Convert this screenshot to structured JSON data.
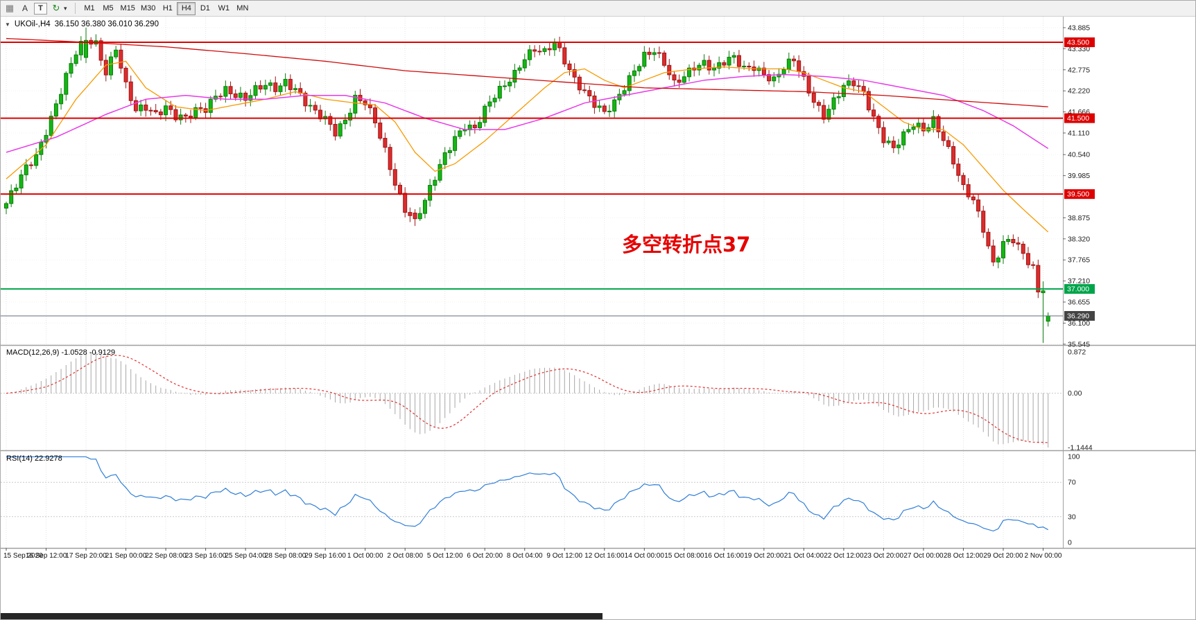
{
  "toolbar": {
    "icons": [
      {
        "name": "chart-grid-icon",
        "glyph": "▦"
      },
      {
        "name": "cursor-a-icon",
        "glyph": "A"
      },
      {
        "name": "text-tool-icon",
        "glyph": "T"
      },
      {
        "name": "refresh-icon",
        "glyph": "↻"
      },
      {
        "name": "dropdown-caret-icon",
        "glyph": "▾"
      }
    ],
    "timeframes": [
      "M1",
      "M5",
      "M15",
      "M30",
      "H1",
      "H4",
      "D1",
      "W1",
      "MN"
    ],
    "active_timeframe": "H4"
  },
  "chart_header": {
    "collapse_glyph": "▼",
    "symbol": "UKOil-,H4",
    "ohlc": "36.150 36.380 36.010 36.290"
  },
  "indicators": {
    "macd_header": "MACD(12,26,9) -1.0528 -0.9129",
    "rsi_header": "RSI(14) 22.9278"
  },
  "annotation": {
    "text": "多空转折点37"
  },
  "colors": {
    "bull": "#14b714",
    "bull_border": "#0a7a0a",
    "bear": "#dd2c2c",
    "bear_border": "#9b1616",
    "ma_fast": "#f79a00",
    "ma_mid": "#e83ae8",
    "ma_slow": "#cf0a0a",
    "level_red": "#dd0000",
    "level_green": "#00a44a",
    "current_line": "#5c6b7a",
    "current_bg": "#444444",
    "macd_hist": "#a7a7a7",
    "macd_signal": "#e03030",
    "rsi_line": "#2f7ed8",
    "grid": "#e4e4e4",
    "grid_h": "#f1f1f1",
    "ind_level": "#c9c9c9",
    "separator": "#9f9f9f",
    "annotation": "#e60000"
  },
  "chart_data": {
    "type": "candlestick",
    "symbol": "UKOil",
    "timeframe": "H4",
    "n_bars": 210,
    "ohlc_current": {
      "open": 36.15,
      "high": 36.38,
      "low": 36.01,
      "close": 36.29
    },
    "close_anchors": [
      [
        0,
        39.25
      ],
      [
        2,
        39.7
      ],
      [
        4,
        40.15
      ],
      [
        6,
        40.5
      ],
      [
        8,
        41.2
      ],
      [
        10,
        41.9
      ],
      [
        12,
        42.6
      ],
      [
        14,
        43.2
      ],
      [
        16,
        43.55
      ],
      [
        18,
        43.45
      ],
      [
        20,
        42.75
      ],
      [
        22,
        43.4
      ],
      [
        24,
        42.35
      ],
      [
        26,
        41.65
      ],
      [
        28,
        41.75
      ],
      [
        30,
        41.6
      ],
      [
        32,
        41.85
      ],
      [
        34,
        41.6
      ],
      [
        36,
        41.5
      ],
      [
        38,
        41.65
      ],
      [
        40,
        41.7
      ],
      [
        42,
        42.1
      ],
      [
        44,
        42.3
      ],
      [
        46,
        42.15
      ],
      [
        48,
        42.0
      ],
      [
        50,
        42.2
      ],
      [
        52,
        42.35
      ],
      [
        54,
        42.3
      ],
      [
        56,
        42.5
      ],
      [
        58,
        42.3
      ],
      [
        60,
        41.9
      ],
      [
        62,
        41.6
      ],
      [
        64,
        41.45
      ],
      [
        66,
        41.15
      ],
      [
        68,
        41.5
      ],
      [
        70,
        42.05
      ],
      [
        72,
        41.9
      ],
      [
        74,
        41.35
      ],
      [
        76,
        40.6
      ],
      [
        78,
        39.8
      ],
      [
        80,
        39.15
      ],
      [
        82,
        38.85
      ],
      [
        84,
        39.3
      ],
      [
        86,
        39.9
      ],
      [
        88,
        40.5
      ],
      [
        90,
        41.0
      ],
      [
        92,
        41.35
      ],
      [
        94,
        41.25
      ],
      [
        96,
        41.7
      ],
      [
        98,
        42.05
      ],
      [
        100,
        42.35
      ],
      [
        102,
        42.7
      ],
      [
        104,
        43.15
      ],
      [
        106,
        43.35
      ],
      [
        108,
        43.2
      ],
      [
        110,
        43.45
      ],
      [
        112,
        43.0
      ],
      [
        114,
        42.55
      ],
      [
        116,
        42.25
      ],
      [
        118,
        41.9
      ],
      [
        120,
        41.6
      ],
      [
        122,
        41.85
      ],
      [
        124,
        42.3
      ],
      [
        126,
        42.8
      ],
      [
        128,
        43.2
      ],
      [
        130,
        43.3
      ],
      [
        132,
        42.9
      ],
      [
        134,
        42.35
      ],
      [
        136,
        42.6
      ],
      [
        138,
        42.9
      ],
      [
        140,
        43.0
      ],
      [
        142,
        42.8
      ],
      [
        144,
        42.95
      ],
      [
        146,
        43.05
      ],
      [
        148,
        42.8
      ],
      [
        150,
        42.9
      ],
      [
        152,
        42.7
      ],
      [
        154,
        42.5
      ],
      [
        156,
        42.8
      ],
      [
        158,
        43.0
      ],
      [
        160,
        42.5
      ],
      [
        162,
        42.0
      ],
      [
        164,
        41.6
      ],
      [
        166,
        41.95
      ],
      [
        168,
        42.3
      ],
      [
        170,
        42.4
      ],
      [
        172,
        42.15
      ],
      [
        174,
        41.55
      ],
      [
        176,
        41.0
      ],
      [
        178,
        40.7
      ],
      [
        180,
        41.0
      ],
      [
        182,
        41.3
      ],
      [
        184,
        41.2
      ],
      [
        186,
        41.5
      ],
      [
        188,
        41.0
      ],
      [
        190,
        40.35
      ],
      [
        192,
        39.6
      ],
      [
        194,
        39.3
      ],
      [
        196,
        38.6
      ],
      [
        198,
        37.7
      ],
      [
        200,
        38.25
      ],
      [
        202,
        38.3
      ],
      [
        204,
        37.85
      ],
      [
        206,
        37.5
      ],
      [
        207,
        36.9
      ],
      [
        208,
        36.95
      ],
      [
        209,
        36.29
      ]
    ],
    "candle_overrides": {
      "16": [
        43.1,
        43.885,
        42.95,
        43.55
      ],
      "82": [
        39.0,
        39.1,
        38.66,
        38.85
      ],
      "208": [
        36.9,
        37.2,
        35.58,
        36.95
      ],
      "209": [
        36.15,
        36.38,
        36.01,
        36.29
      ]
    },
    "ma_orange": [
      [
        0,
        39.9
      ],
      [
        8,
        40.8
      ],
      [
        14,
        42.0
      ],
      [
        20,
        42.9
      ],
      [
        24,
        43.0
      ],
      [
        28,
        42.3
      ],
      [
        34,
        41.8
      ],
      [
        40,
        41.7
      ],
      [
        46,
        41.85
      ],
      [
        52,
        42.0
      ],
      [
        58,
        42.2
      ],
      [
        64,
        42.0
      ],
      [
        70,
        41.9
      ],
      [
        74,
        41.85
      ],
      [
        78,
        41.4
      ],
      [
        82,
        40.6
      ],
      [
        86,
        40.1
      ],
      [
        90,
        40.3
      ],
      [
        96,
        40.9
      ],
      [
        102,
        41.6
      ],
      [
        108,
        42.3
      ],
      [
        112,
        42.7
      ],
      [
        116,
        42.8
      ],
      [
        120,
        42.5
      ],
      [
        124,
        42.3
      ],
      [
        128,
        42.5
      ],
      [
        132,
        42.7
      ],
      [
        138,
        42.8
      ],
      [
        144,
        42.85
      ],
      [
        150,
        42.8
      ],
      [
        156,
        42.8
      ],
      [
        160,
        42.7
      ],
      [
        164,
        42.5
      ],
      [
        168,
        42.3
      ],
      [
        172,
        42.2
      ],
      [
        176,
        41.8
      ],
      [
        180,
        41.4
      ],
      [
        184,
        41.2
      ],
      [
        188,
        41.2
      ],
      [
        192,
        40.8
      ],
      [
        196,
        40.2
      ],
      [
        200,
        39.6
      ],
      [
        204,
        39.1
      ],
      [
        209,
        38.5
      ]
    ],
    "ma_magenta": [
      [
        0,
        40.6
      ],
      [
        10,
        41.0
      ],
      [
        20,
        41.6
      ],
      [
        28,
        42.0
      ],
      [
        36,
        42.1
      ],
      [
        44,
        42.0
      ],
      [
        52,
        42.0
      ],
      [
        60,
        42.1
      ],
      [
        68,
        42.1
      ],
      [
        76,
        41.9
      ],
      [
        84,
        41.5
      ],
      [
        92,
        41.2
      ],
      [
        100,
        41.2
      ],
      [
        108,
        41.5
      ],
      [
        116,
        41.9
      ],
      [
        124,
        42.1
      ],
      [
        132,
        42.3
      ],
      [
        140,
        42.5
      ],
      [
        148,
        42.6
      ],
      [
        156,
        42.65
      ],
      [
        164,
        42.6
      ],
      [
        172,
        42.5
      ],
      [
        180,
        42.3
      ],
      [
        188,
        42.1
      ],
      [
        196,
        41.7
      ],
      [
        202,
        41.3
      ],
      [
        209,
        40.7
      ]
    ],
    "ma_red": [
      [
        0,
        43.6
      ],
      [
        16,
        43.5
      ],
      [
        32,
        43.38
      ],
      [
        48,
        43.2
      ],
      [
        64,
        43.0
      ],
      [
        80,
        42.75
      ],
      [
        96,
        42.6
      ],
      [
        112,
        42.45
      ],
      [
        128,
        42.3
      ],
      [
        144,
        42.25
      ],
      [
        160,
        42.2
      ],
      [
        176,
        42.1
      ],
      [
        192,
        41.95
      ],
      [
        209,
        41.8
      ]
    ],
    "levels": [
      {
        "label": "43.500",
        "value": 43.5,
        "color": "#dd0000"
      },
      {
        "label": "41.500",
        "value": 41.5,
        "color": "#dd0000"
      },
      {
        "label": "39.500",
        "value": 39.5,
        "color": "#dd0000"
      },
      {
        "label": "37.000",
        "value": 37.0,
        "color": "#00a44a"
      }
    ],
    "current_price": {
      "label": "36.290",
      "value": 36.29
    },
    "scale_ticks": [
      "43.885",
      "43.330",
      "42.775",
      "42.220",
      "41.666",
      "41.110",
      "40.540",
      "39.985",
      "38.875",
      "38.320",
      "37.765",
      "37.210",
      "36.655",
      "36.100",
      "35.545"
    ],
    "macd": {
      "fast": 12,
      "slow": 26,
      "signal": 9,
      "current_main": -1.0528,
      "current_signal": -0.9129,
      "range": {
        "max": 0.872,
        "min": -1.1444
      },
      "ticks": [
        {
          "label": "0.872",
          "value": 0.872
        },
        {
          "label": "0.00",
          "value": 0
        },
        {
          "label": "-1.1444",
          "value": -1.1444
        }
      ]
    },
    "rsi": {
      "period": 14,
      "current": 22.9278,
      "levels": [
        70,
        30
      ],
      "ticks": [
        {
          "label": "100",
          "value": 100
        },
        {
          "label": "70",
          "value": 70
        },
        {
          "label": "30",
          "value": 30
        },
        {
          "label": "0",
          "value": 0
        }
      ]
    },
    "time_labels": [
      "15 Sep 2020",
      "16 Sep 12:00",
      "17 Sep 20:00",
      "21 Sep 00:00",
      "22 Sep 08:00",
      "23 Sep 16:00",
      "25 Sep 04:00",
      "28 Sep 08:00",
      "29 Sep 16:00",
      "1 Oct 00:00",
      "2 Oct 08:00",
      "5 Oct 12:00",
      "6 Oct 20:00",
      "8 Oct 04:00",
      "9 Oct 12:00",
      "12 Oct 16:00",
      "14 Oct 00:00",
      "15 Oct 08:00",
      "16 Oct 16:00",
      "19 Oct 20:00",
      "21 Oct 04:00",
      "22 Oct 12:00",
      "23 Oct 20:00",
      "27 Oct 00:00",
      "28 Oct 12:00",
      "29 Oct 20:00",
      "2 Nov 00:00"
    ]
  }
}
